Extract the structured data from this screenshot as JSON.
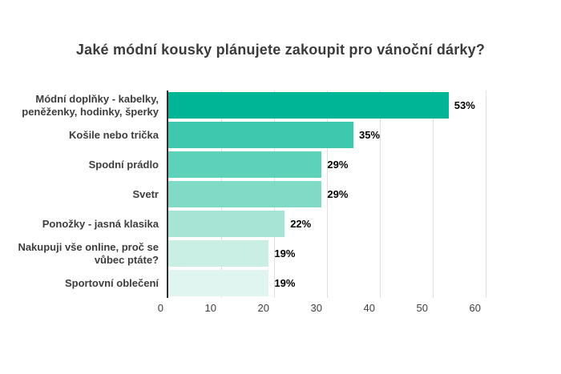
{
  "page": {
    "background": "#ffffff"
  },
  "chart_data": {
    "type": "bar",
    "orientation": "horizontal",
    "title": "Jaké módní kousky plánujete zakoupit pro vánoční dárky?",
    "categories": [
      "Módní doplňky - kabelky, peněženky, hodinky, šperky",
      "Košile nebo trička",
      "Spodní prádlo",
      "Svetr",
      "Ponožky - jasná klasika",
      "Nakupuji vše online, proč se vůbec ptáte?",
      "Sportovní oblečení"
    ],
    "category_lines": [
      [
        "Módní doplňky - kabelky,",
        "peněženky, hodinky, šperky"
      ],
      [
        "Košile nebo trička"
      ],
      [
        "Spodní prádlo"
      ],
      [
        "Svetr"
      ],
      [
        "Ponožky - jasná klasika"
      ],
      [
        "Nakupuji vše online, proč se",
        "vůbec ptáte?"
      ],
      [
        "Sportovní oblečení"
      ]
    ],
    "values": [
      53,
      35,
      29,
      29,
      22,
      19,
      19
    ],
    "value_labels": [
      "53%",
      "35%",
      "29%",
      "29%",
      "22%",
      "19%",
      "19%"
    ],
    "bar_colors": [
      "#00b596",
      "#3ec8ad",
      "#5ed1ba",
      "#81dac6",
      "#a8e4d5",
      "#c9eee3",
      "#e0f5ef"
    ],
    "xlim": [
      0,
      60
    ],
    "xticks": [
      "0",
      "10",
      "20",
      "30",
      "40",
      "50",
      "60"
    ],
    "grid": "vertical",
    "legend": "none",
    "axis_color": "#2e2e2e",
    "gridline_color": "#e0e0e0",
    "title_color": "#3b3b3b",
    "category_label_color": "#3d3d3d",
    "value_label_color": "#000000"
  }
}
